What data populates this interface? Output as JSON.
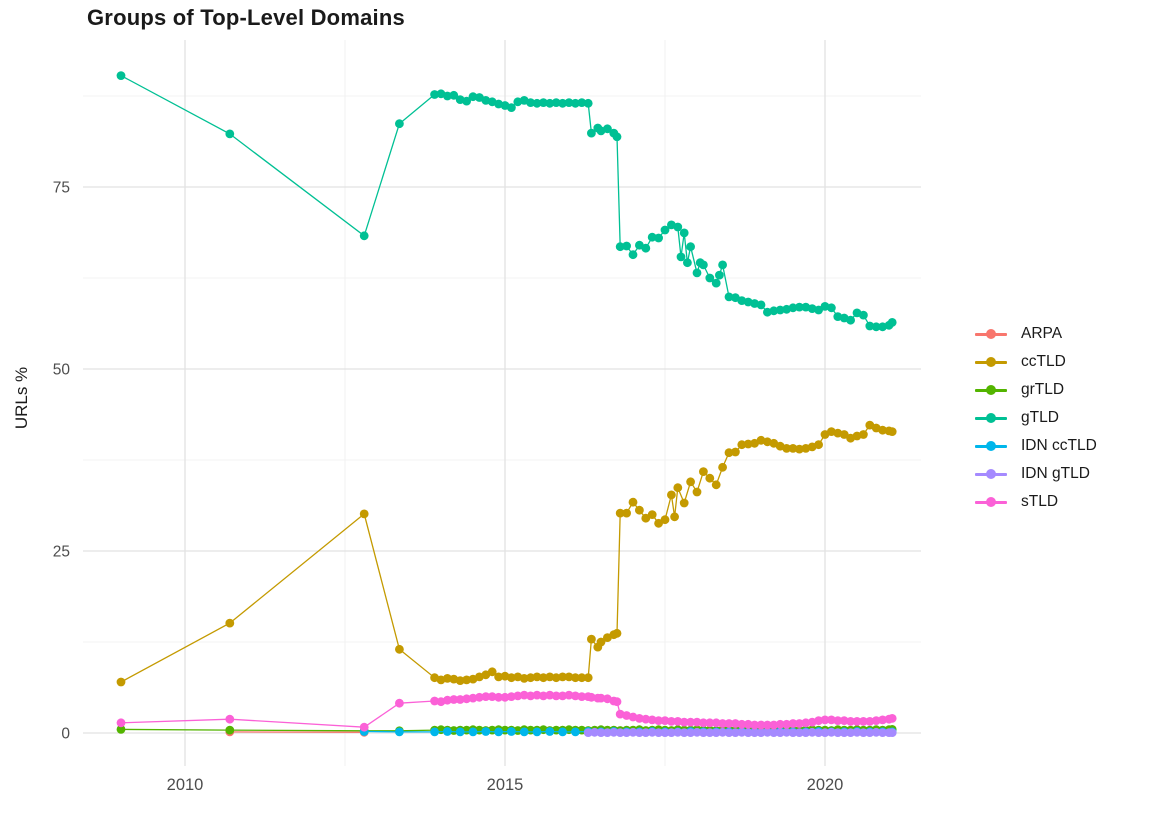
{
  "title": "Groups of Top-Level Domains",
  "chart_data": {
    "type": "line",
    "title": "Groups of Top-Level Domains",
    "xlabel": "",
    "ylabel": "URLs %",
    "x_ticks": [
      2010,
      2015,
      2020
    ],
    "y_ticks": [
      0,
      25,
      50,
      75
    ],
    "x_minor": [
      2012.5,
      2017.5
    ],
    "y_minor": [
      12.5,
      37.5,
      62.5,
      87.5
    ],
    "xlim": [
      2008.4,
      2021.7
    ],
    "ylim": [
      -4.5,
      95.2
    ],
    "grid": true,
    "background": "#ffffff",
    "legend_position": "right",
    "series": [
      {
        "name": "ARPA",
        "color": "#F8766D",
        "x": [
          2010.7,
          2012.8
        ],
        "y": [
          0.15,
          0.1
        ]
      },
      {
        "name": "ccTLD",
        "color": "#C49A00",
        "x": [
          2009,
          2010.7,
          2012.8,
          2013.35,
          2013.9,
          2014,
          2014.1,
          2014.2,
          2014.3,
          2014.4,
          2014.5,
          2014.6,
          2014.7,
          2014.8,
          2014.9,
          2015,
          2015.1,
          2015.2,
          2015.3,
          2015.4,
          2015.5,
          2015.6,
          2015.7,
          2015.8,
          2015.9,
          2016,
          2016.1,
          2016.2,
          2016.3,
          2016.35,
          2016.45,
          2016.5,
          2016.6,
          2016.7,
          2016.75,
          2016.8,
          2016.9,
          2017,
          2017.1,
          2017.2,
          2017.3,
          2017.4,
          2017.5,
          2017.6,
          2017.65,
          2017.7,
          2017.8,
          2017.9,
          2018,
          2018.1,
          2018.2,
          2018.3,
          2018.4,
          2018.5,
          2018.6,
          2018.7,
          2018.8,
          2018.9,
          2019,
          2019.1,
          2019.2,
          2019.3,
          2019.4,
          2019.5,
          2019.6,
          2019.7,
          2019.8,
          2019.9,
          2020,
          2020.1,
          2020.2,
          2020.3,
          2020.4,
          2020.5,
          2020.6,
          2020.7,
          2020.8,
          2020.9,
          2021,
          2021.05
        ],
        "y": [
          7.0,
          15.1,
          30.1,
          11.5,
          7.6,
          7.3,
          7.5,
          7.4,
          7.2,
          7.3,
          7.4,
          7.7,
          8.0,
          8.4,
          7.7,
          7.8,
          7.6,
          7.7,
          7.5,
          7.6,
          7.7,
          7.6,
          7.7,
          7.6,
          7.7,
          7.7,
          7.6,
          7.6,
          7.6,
          12.9,
          11.8,
          12.5,
          13.1,
          13.5,
          13.7,
          30.2,
          30.2,
          31.7,
          30.6,
          29.5,
          30.0,
          28.8,
          29.3,
          32.7,
          29.7,
          33.7,
          31.6,
          34.5,
          33.1,
          35.9,
          35.0,
          34.1,
          36.5,
          38.5,
          38.6,
          39.6,
          39.7,
          39.8,
          40.2,
          40.0,
          39.8,
          39.4,
          39.1,
          39.1,
          39.0,
          39.1,
          39.3,
          39.6,
          41.0,
          41.4,
          41.2,
          41.0,
          40.5,
          40.8,
          41.0,
          42.3,
          41.9,
          41.6,
          41.5,
          41.4
        ]
      },
      {
        "name": "grTLD",
        "color": "#53B400",
        "x": [
          2009,
          2010.7,
          2012.8,
          2013.35,
          2013.9,
          2014,
          2014.1,
          2014.2,
          2014.3,
          2014.4,
          2014.5,
          2014.6,
          2014.7,
          2014.8,
          2014.9,
          2015,
          2015.1,
          2015.2,
          2015.3,
          2015.4,
          2015.5,
          2015.6,
          2015.7,
          2015.8,
          2015.9,
          2016,
          2016.1,
          2016.2,
          2016.3,
          2016.4,
          2016.5,
          2016.6,
          2016.7,
          2016.8,
          2016.9,
          2017,
          2017.1,
          2017.2,
          2017.3,
          2017.4,
          2017.5,
          2017.6,
          2017.7,
          2017.8,
          2017.9,
          2018,
          2018.1,
          2018.2,
          2018.3,
          2018.4,
          2018.5,
          2018.6,
          2018.7,
          2018.8,
          2018.9,
          2019,
          2019.1,
          2019.2,
          2019.3,
          2019.4,
          2019.5,
          2019.6,
          2019.7,
          2019.8,
          2019.9,
          2020,
          2020.1,
          2020.2,
          2020.3,
          2020.4,
          2020.5,
          2020.6,
          2020.7,
          2020.8,
          2020.9,
          2021,
          2021.05
        ],
        "y": [
          0.5,
          0.4,
          0.3,
          0.3,
          0.4,
          0.45,
          0.4,
          0.35,
          0.4,
          0.4,
          0.45,
          0.4,
          0.35,
          0.4,
          0.45,
          0.4,
          0.4,
          0.35,
          0.45,
          0.4,
          0.4,
          0.45,
          0.35,
          0.4,
          0.4,
          0.45,
          0.4,
          0.4,
          0.35,
          0.4,
          0.45,
          0.4,
          0.4,
          0.35,
          0.4,
          0.4,
          0.45,
          0.35,
          0.4,
          0.45,
          0.4,
          0.35,
          0.45,
          0.4,
          0.4,
          0.45,
          0.4,
          0.4,
          0.35,
          0.45,
          0.4,
          0.4,
          0.45,
          0.4,
          0.35,
          0.4,
          0.45,
          0.4,
          0.4,
          0.45,
          0.35,
          0.4,
          0.4,
          0.45,
          0.4,
          0.4,
          0.35,
          0.45,
          0.4,
          0.4,
          0.45,
          0.4,
          0.4,
          0.45,
          0.4,
          0.45,
          0.5
        ]
      },
      {
        "name": "gTLD",
        "color": "#00C094",
        "x": [
          2009,
          2010.7,
          2012.8,
          2013.35,
          2013.9,
          2014,
          2014.1,
          2014.2,
          2014.3,
          2014.4,
          2014.5,
          2014.6,
          2014.7,
          2014.8,
          2014.9,
          2015,
          2015.1,
          2015.2,
          2015.3,
          2015.4,
          2015.5,
          2015.6,
          2015.7,
          2015.8,
          2015.9,
          2016,
          2016.1,
          2016.2,
          2016.3,
          2016.35,
          2016.45,
          2016.5,
          2016.6,
          2016.7,
          2016.75,
          2016.8,
          2016.9,
          2017,
          2017.1,
          2017.2,
          2017.3,
          2017.4,
          2017.5,
          2017.6,
          2017.7,
          2017.75,
          2017.8,
          2017.85,
          2017.9,
          2018,
          2018.05,
          2018.1,
          2018.2,
          2018.3,
          2018.35,
          2018.4,
          2018.5,
          2018.6,
          2018.7,
          2018.8,
          2018.9,
          2019,
          2019.1,
          2019.2,
          2019.3,
          2019.4,
          2019.5,
          2019.6,
          2019.7,
          2019.8,
          2019.9,
          2020,
          2020.1,
          2020.2,
          2020.3,
          2020.4,
          2020.5,
          2020.6,
          2020.7,
          2020.8,
          2020.9,
          2021,
          2021.05
        ],
        "y": [
          90.3,
          82.3,
          68.3,
          83.7,
          87.7,
          87.8,
          87.5,
          87.6,
          87.0,
          86.8,
          87.4,
          87.3,
          86.9,
          86.7,
          86.4,
          86.2,
          85.9,
          86.7,
          86.9,
          86.6,
          86.5,
          86.6,
          86.5,
          86.6,
          86.5,
          86.6,
          86.5,
          86.6,
          86.5,
          82.4,
          83.1,
          82.7,
          83.0,
          82.4,
          81.9,
          66.8,
          66.9,
          65.7,
          67.0,
          66.6,
          68.1,
          68.0,
          69.1,
          69.8,
          69.5,
          65.4,
          68.7,
          64.6,
          66.8,
          63.2,
          64.6,
          64.3,
          62.5,
          61.8,
          62.9,
          64.3,
          59.9,
          59.8,
          59.4,
          59.2,
          59.0,
          58.8,
          57.8,
          58.0,
          58.1,
          58.2,
          58.4,
          58.5,
          58.5,
          58.3,
          58.1,
          58.6,
          58.4,
          57.2,
          57.0,
          56.7,
          57.7,
          57.4,
          55.9,
          55.8,
          55.8,
          56.0,
          56.4
        ]
      },
      {
        "name": "IDN ccTLD",
        "color": "#00B6EB",
        "x": [
          2012.8,
          2013.35,
          2013.9,
          2014.1,
          2014.3,
          2014.5,
          2014.7,
          2014.9,
          2015.1,
          2015.3,
          2015.5,
          2015.7,
          2015.9,
          2016.1,
          2016.3,
          2016.5,
          2016.7,
          2016.9,
          2017.1,
          2017.3,
          2017.5,
          2017.7,
          2017.9,
          2018.1,
          2018.3,
          2018.5,
          2018.7,
          2018.9,
          2019.1,
          2019.3,
          2019.5,
          2019.7,
          2019.9,
          2020.1,
          2020.3,
          2020.5,
          2020.7,
          2020.9,
          2021.05
        ],
        "y": [
          0.2,
          0.15,
          0.15,
          0.2,
          0.15,
          0.15,
          0.2,
          0.15,
          0.2,
          0.15,
          0.15,
          0.2,
          0.15,
          0.15,
          0.2,
          0.15,
          0.2,
          0.15,
          0.15,
          0.2,
          0.15,
          0.15,
          0.2,
          0.15,
          0.15,
          0.15,
          0.2,
          0.15,
          0.15,
          0.2,
          0.15,
          0.15,
          0.2,
          0.15,
          0.15,
          0.2,
          0.15,
          0.15,
          0.15
        ]
      },
      {
        "name": "IDN gTLD",
        "color": "#A58AFF",
        "x": [
          2016.3,
          2016.4,
          2016.5,
          2016.6,
          2016.7,
          2016.8,
          2016.9,
          2017,
          2017.1,
          2017.2,
          2017.3,
          2017.4,
          2017.5,
          2017.6,
          2017.7,
          2017.8,
          2017.9,
          2018,
          2018.1,
          2018.2,
          2018.3,
          2018.4,
          2018.5,
          2018.6,
          2018.7,
          2018.8,
          2018.9,
          2019,
          2019.1,
          2019.2,
          2019.3,
          2019.4,
          2019.5,
          2019.6,
          2019.7,
          2019.8,
          2019.9,
          2020,
          2020.1,
          2020.2,
          2020.3,
          2020.4,
          2020.5,
          2020.6,
          2020.7,
          2020.8,
          2020.9,
          2021,
          2021.05
        ],
        "y": [
          0.05,
          0.1,
          0.05,
          0.05,
          0.1,
          0.05,
          0.05,
          0.1,
          0.05,
          0.05,
          0.1,
          0.05,
          0.05,
          0.05,
          0.1,
          0.05,
          0.05,
          0.1,
          0.05,
          0.05,
          0.05,
          0.1,
          0.05,
          0.05,
          0.1,
          0.05,
          0.05,
          0.05,
          0.1,
          0.05,
          0.05,
          0.1,
          0.05,
          0.05,
          0.05,
          0.1,
          0.05,
          0.05,
          0.1,
          0.05,
          0.05,
          0.05,
          0.1,
          0.05,
          0.05,
          0.1,
          0.05,
          0.05,
          0.05
        ]
      },
      {
        "name": "sTLD",
        "color": "#FB61D7",
        "x": [
          2009,
          2010.7,
          2012.8,
          2013.35,
          2013.9,
          2014,
          2014.1,
          2014.2,
          2014.3,
          2014.4,
          2014.5,
          2014.6,
          2014.7,
          2014.8,
          2014.9,
          2015,
          2015.1,
          2015.2,
          2015.3,
          2015.4,
          2015.5,
          2015.6,
          2015.7,
          2015.8,
          2015.9,
          2016,
          2016.1,
          2016.2,
          2016.3,
          2016.35,
          2016.45,
          2016.5,
          2016.6,
          2016.7,
          2016.75,
          2016.8,
          2016.9,
          2017,
          2017.1,
          2017.2,
          2017.3,
          2017.4,
          2017.5,
          2017.6,
          2017.7,
          2017.8,
          2017.9,
          2018,
          2018.1,
          2018.2,
          2018.3,
          2018.4,
          2018.5,
          2018.6,
          2018.7,
          2018.8,
          2018.9,
          2019,
          2019.1,
          2019.2,
          2019.3,
          2019.4,
          2019.5,
          2019.6,
          2019.7,
          2019.8,
          2019.9,
          2020,
          2020.1,
          2020.2,
          2020.3,
          2020.4,
          2020.5,
          2020.6,
          2020.7,
          2020.8,
          2020.9,
          2021,
          2021.05
        ],
        "y": [
          1.4,
          1.9,
          0.8,
          4.1,
          4.4,
          4.3,
          4.5,
          4.6,
          4.6,
          4.7,
          4.8,
          4.9,
          5.0,
          5.0,
          4.9,
          4.9,
          5.0,
          5.1,
          5.2,
          5.1,
          5.2,
          5.1,
          5.2,
          5.1,
          5.1,
          5.2,
          5.1,
          5.0,
          5.0,
          4.9,
          4.8,
          4.8,
          4.7,
          4.4,
          4.3,
          2.6,
          2.4,
          2.2,
          2.0,
          1.9,
          1.8,
          1.7,
          1.7,
          1.6,
          1.6,
          1.5,
          1.5,
          1.5,
          1.4,
          1.4,
          1.4,
          1.3,
          1.3,
          1.3,
          1.2,
          1.2,
          1.1,
          1.1,
          1.1,
          1.1,
          1.2,
          1.2,
          1.3,
          1.3,
          1.4,
          1.5,
          1.7,
          1.8,
          1.8,
          1.7,
          1.7,
          1.6,
          1.6,
          1.6,
          1.6,
          1.7,
          1.8,
          1.9,
          2.0
        ]
      }
    ]
  }
}
